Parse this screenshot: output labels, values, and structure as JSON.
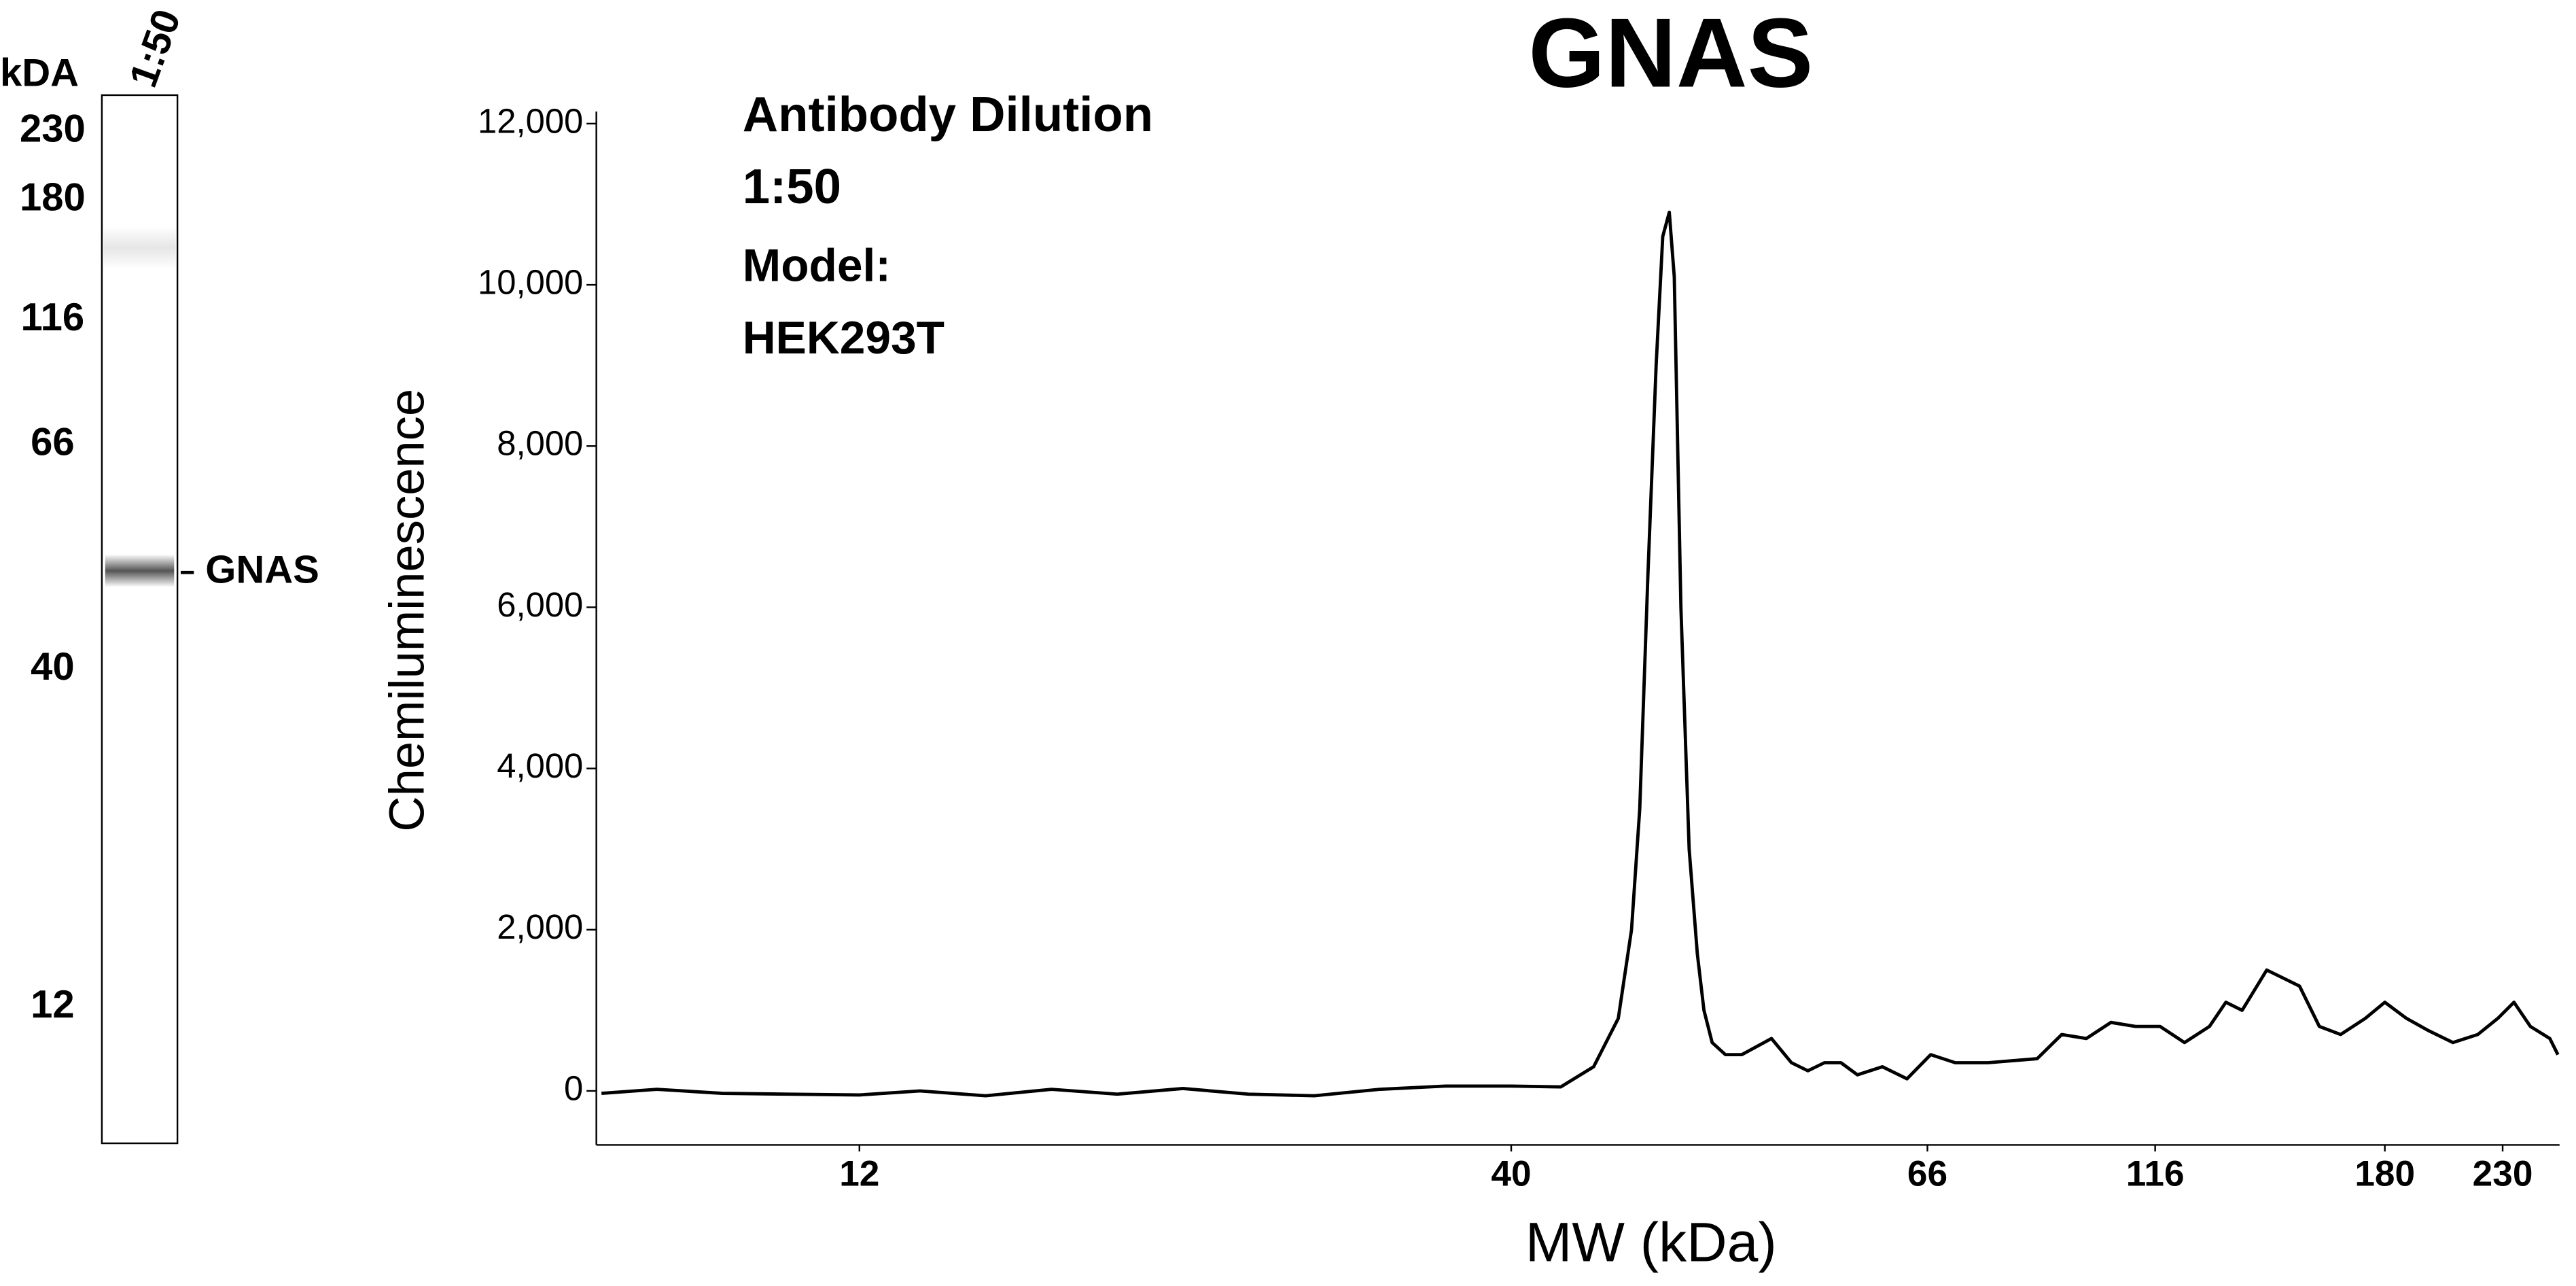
{
  "blot": {
    "unit_label": "kDA",
    "lane_label": "1:50",
    "band_label": "GNAS",
    "markers": [
      "230",
      "180",
      "116",
      "66",
      "40",
      "12"
    ]
  },
  "chart_data": {
    "type": "line",
    "title": "GNAS",
    "annotations": [
      "Antibody Dilution",
      "1:50",
      "Model:",
      "HEK293T"
    ],
    "x_label": "MW (kDa)",
    "y_label": "Chemiluminescence",
    "color": "#000000",
    "xlim": [
      7.4,
      259
    ],
    "xticks": [
      12,
      40,
      66,
      116,
      180,
      230
    ],
    "ylim": [
      -670,
      12150
    ],
    "yticks": [
      0,
      {
        "value": 2000,
        "label": "2,000"
      },
      {
        "value": 4000,
        "label": "4,000"
      },
      {
        "value": 6000,
        "label": "6,000"
      },
      {
        "value": 8000,
        "label": "8,000"
      },
      {
        "value": 10000,
        "label": "10,000"
      },
      {
        "value": 12000,
        "label": "12,000"
      }
    ],
    "x": [
      7.47,
      8.27,
      9.33,
      10.53,
      12,
      13.42,
      15.15,
      17.11,
      19.32,
      21.81,
      24.62,
      27.8,
      31.37,
      35.43,
      40,
      42.46,
      44.17,
      45.5,
      46.23,
      46.69,
      47.15,
      47.62,
      48.0,
      48.38,
      48.67,
      49.06,
      49.55,
      50.04,
      50.44,
      50.94,
      51.76,
      52.79,
      54.71,
      56.04,
      57.16,
      58.31,
      59.48,
      60.67,
      62.52,
      64.4,
      66.53,
      70.71,
      76.68,
      86.61,
      92.05,
      97.83,
      103.97,
      110.5,
      117.1,
      122.7,
      128.7,
      132.8,
      137.0,
      143.6,
      148.2,
      152.9,
      158.8,
      165.4,
      173.4,
      180,
      188.3,
      197.0,
      207.4,
      218.4,
      227.7,
      235.5,
      243.7,
      253.8,
      258.1
    ],
    "values": [
      -30,
      20,
      -30,
      -40,
      -50,
      0,
      -60,
      20,
      -40,
      30,
      -40,
      -60,
      20,
      60,
      60,
      50,
      300,
      900,
      2000,
      3500,
      6400,
      9000,
      10600,
      10900,
      10100,
      6000,
      3000,
      1700,
      1000,
      600,
      450,
      450,
      650,
      350,
      250,
      350,
      350,
      200,
      300,
      150,
      450,
      350,
      350,
      400,
      700,
      650,
      850,
      800,
      800,
      600,
      800,
      1100,
      1000,
      1500,
      1400,
      1300,
      800,
      700,
      900,
      1100,
      900,
      750,
      600,
      700,
      900,
      1100,
      800,
      650,
      450
    ]
  }
}
